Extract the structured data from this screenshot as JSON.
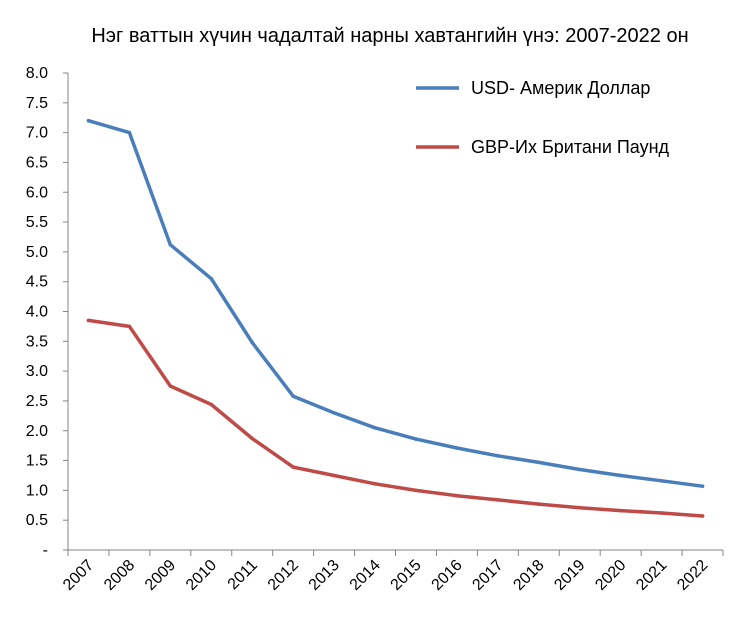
{
  "chart_data": {
    "type": "line",
    "title": "Нэг ваттын хүчин чадалтай нарны хавтангийн үнэ: 2007-2022 он",
    "xlabel": "",
    "ylabel": "",
    "categories": [
      "2007",
      "2008",
      "2009",
      "2010",
      "2011",
      "2012",
      "2013",
      "2014",
      "2015",
      "2016",
      "2017",
      "2018",
      "2019",
      "2020",
      "2021",
      "2022"
    ],
    "ylim": [
      0,
      8
    ],
    "y_ticks": [
      "-",
      "0.5",
      "1.0",
      "1.5",
      "2.0",
      "2.5",
      "3.0",
      "3.5",
      "4.0",
      "4.5",
      "5.0",
      "5.5",
      "6.0",
      "6.5",
      "7.0",
      "7.5",
      "8.0"
    ],
    "grid": false,
    "legend_position": "top-right",
    "series": [
      {
        "name": "USD- Америк Доллар",
        "color": "#4a7ebb",
        "values": [
          7.2,
          7.0,
          5.12,
          4.55,
          3.48,
          2.58,
          2.3,
          2.05,
          1.86,
          1.71,
          1.58,
          1.47,
          1.35,
          1.25,
          1.16,
          1.07
        ]
      },
      {
        "name": "GBP-Их Британи Паунд",
        "color": "#be4b48",
        "values": [
          3.85,
          3.75,
          2.75,
          2.44,
          1.87,
          1.39,
          1.25,
          1.11,
          1.0,
          0.91,
          0.84,
          0.77,
          0.71,
          0.66,
          0.62,
          0.57
        ]
      }
    ]
  }
}
